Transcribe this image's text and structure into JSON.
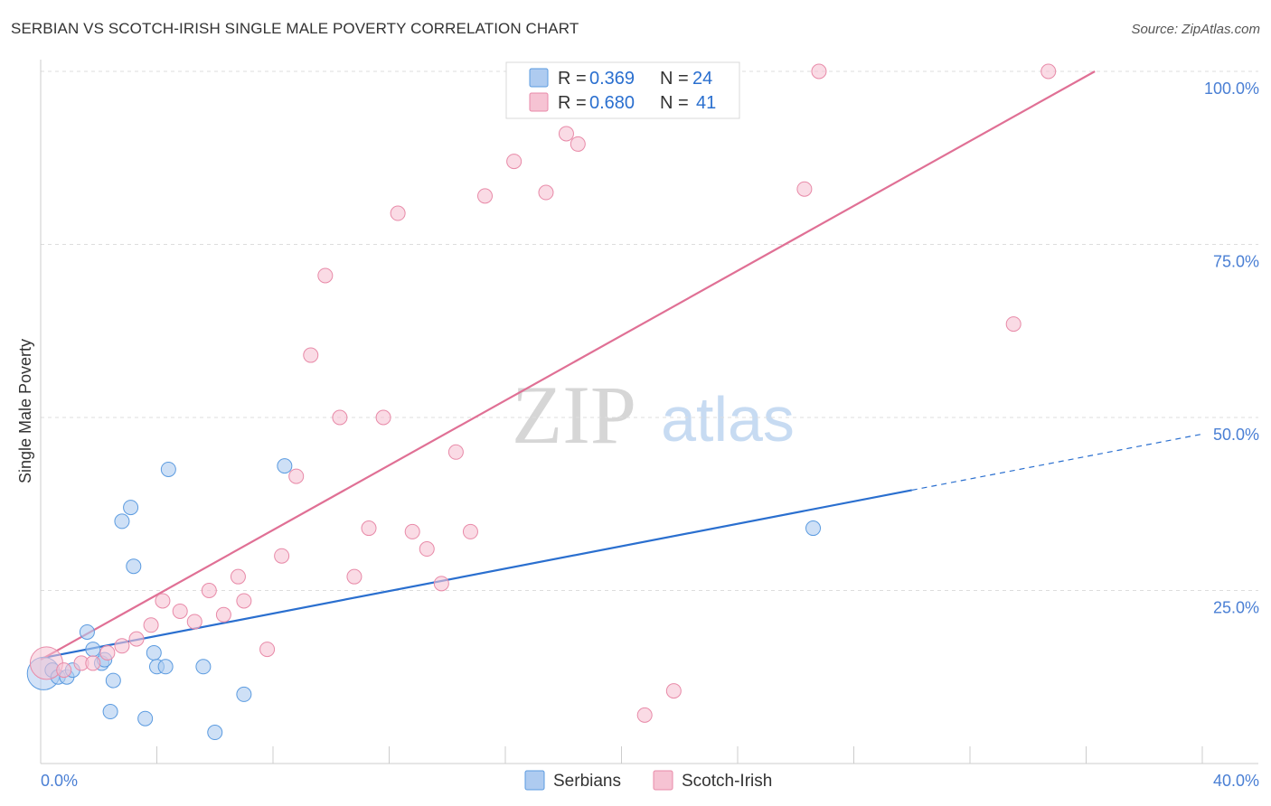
{
  "header": {
    "title": "SERBIAN VS SCOTCH-IRISH SINGLE MALE POVERTY CORRELATION CHART",
    "source": "Source: ZipAtlas.com"
  },
  "watermark": {
    "zip": "ZIP",
    "atlas": "atlas"
  },
  "colors": {
    "serbians_fill": "#aecbf0",
    "serbians_stroke": "#5b9be0",
    "serbians_line": "#2a6fcf",
    "scotch_fill": "#f6c3d3",
    "scotch_stroke": "#e88aa8",
    "scotch_line": "#e07095",
    "axis_label": "#4a7fd4",
    "grid": "#dddddd"
  },
  "legend": {
    "rows": [
      {
        "r_label": "R =",
        "r_value": "0.369",
        "n_label": "N =",
        "n_value": "24"
      },
      {
        "r_label": "R =",
        "r_value": "0.680",
        "n_label": "N =",
        "n_value": "41"
      }
    ]
  },
  "chart_data": {
    "type": "scatter",
    "title": "SERBIAN VS SCOTCH-IRISH SINGLE MALE POVERTY CORRELATION CHART",
    "xlabel": "",
    "ylabel": "Single Male Poverty",
    "xlim": [
      0,
      40
    ],
    "ylim": [
      0,
      100
    ],
    "x_ticks_labels": [
      "0.0%",
      "40.0%"
    ],
    "y_ticks": [
      25,
      50,
      75,
      100
    ],
    "y_tick_labels": [
      "25.0%",
      "50.0%",
      "75.0%",
      "100.0%"
    ],
    "grid": true,
    "legend_position": "top-center",
    "series": [
      {
        "name": "Serbians",
        "r": 0.369,
        "n": 24,
        "trend": {
          "x0": 0,
          "y0": 15.2,
          "x1": 30,
          "y1": 39.5,
          "dashed_to_x": 40,
          "dashed_to_y": 47.6
        },
        "points": [
          {
            "x": 0.1,
            "y": 13.0,
            "big": true
          },
          {
            "x": 0.4,
            "y": 13.5
          },
          {
            "x": 0.6,
            "y": 12.5
          },
          {
            "x": 0.9,
            "y": 12.5
          },
          {
            "x": 1.1,
            "y": 13.5
          },
          {
            "x": 1.6,
            "y": 19.0
          },
          {
            "x": 1.8,
            "y": 16.5
          },
          {
            "x": 2.1,
            "y": 14.5
          },
          {
            "x": 2.2,
            "y": 15.0
          },
          {
            "x": 2.5,
            "y": 12.0
          },
          {
            "x": 2.4,
            "y": 7.5
          },
          {
            "x": 2.8,
            "y": 35.0
          },
          {
            "x": 3.1,
            "y": 37.0
          },
          {
            "x": 3.2,
            "y": 28.5
          },
          {
            "x": 3.6,
            "y": 6.5
          },
          {
            "x": 3.9,
            "y": 16.0
          },
          {
            "x": 4.0,
            "y": 14.0
          },
          {
            "x": 4.3,
            "y": 14.0
          },
          {
            "x": 4.4,
            "y": 42.5
          },
          {
            "x": 5.6,
            "y": 14.0
          },
          {
            "x": 6.0,
            "y": 4.5
          },
          {
            "x": 7.0,
            "y": 10.0
          },
          {
            "x": 8.4,
            "y": 43.0
          },
          {
            "x": 26.6,
            "y": 34.0
          }
        ]
      },
      {
        "name": "Scotch-Irish",
        "r": 0.68,
        "n": 41,
        "trend": {
          "x0": 0,
          "y0": 15.0,
          "x1": 36.3,
          "y1": 100
        },
        "points": [
          {
            "x": 0.2,
            "y": 14.5,
            "big": true
          },
          {
            "x": 0.8,
            "y": 13.5
          },
          {
            "x": 1.4,
            "y": 14.5
          },
          {
            "x": 1.8,
            "y": 14.5
          },
          {
            "x": 2.3,
            "y": 16.0
          },
          {
            "x": 2.8,
            "y": 17.0
          },
          {
            "x": 3.3,
            "y": 18.0
          },
          {
            "x": 3.8,
            "y": 20.0
          },
          {
            "x": 4.2,
            "y": 23.5
          },
          {
            "x": 4.8,
            "y": 22.0
          },
          {
            "x": 5.3,
            "y": 20.5
          },
          {
            "x": 5.8,
            "y": 25.0
          },
          {
            "x": 6.3,
            "y": 21.5
          },
          {
            "x": 6.8,
            "y": 27.0
          },
          {
            "x": 7.0,
            "y": 23.5
          },
          {
            "x": 7.8,
            "y": 16.5
          },
          {
            "x": 8.3,
            "y": 30.0
          },
          {
            "x": 8.8,
            "y": 41.5
          },
          {
            "x": 9.3,
            "y": 59.0
          },
          {
            "x": 9.8,
            "y": 70.5
          },
          {
            "x": 10.3,
            "y": 50.0
          },
          {
            "x": 10.8,
            "y": 27.0
          },
          {
            "x": 11.3,
            "y": 34.0
          },
          {
            "x": 11.8,
            "y": 50.0
          },
          {
            "x": 12.3,
            "y": 79.5
          },
          {
            "x": 12.8,
            "y": 33.5
          },
          {
            "x": 13.3,
            "y": 31.0
          },
          {
            "x": 13.8,
            "y": 26.0
          },
          {
            "x": 14.3,
            "y": 45.0
          },
          {
            "x": 14.8,
            "y": 33.5
          },
          {
            "x": 15.3,
            "y": 82.0
          },
          {
            "x": 16.3,
            "y": 87.0
          },
          {
            "x": 17.4,
            "y": 82.5
          },
          {
            "x": 18.1,
            "y": 91.0
          },
          {
            "x": 18.5,
            "y": 89.5
          },
          {
            "x": 20.8,
            "y": 7.0
          },
          {
            "x": 21.8,
            "y": 10.5
          },
          {
            "x": 26.3,
            "y": 83.0
          },
          {
            "x": 26.8,
            "y": 100.0
          },
          {
            "x": 33.5,
            "y": 63.5
          },
          {
            "x": 34.7,
            "y": 100.0
          }
        ]
      }
    ]
  }
}
